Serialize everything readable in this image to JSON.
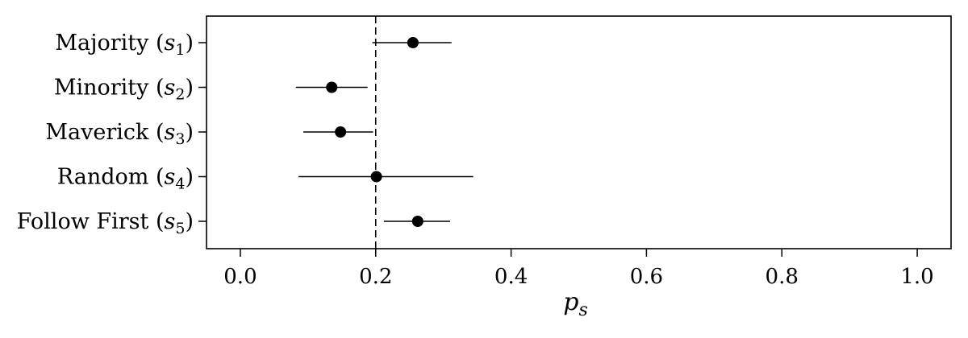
{
  "chart_data": {
    "type": "scatter",
    "categories": [
      {
        "name": "Majority",
        "symbol": "s",
        "subscript": "1"
      },
      {
        "name": "Minority",
        "symbol": "s",
        "subscript": "2"
      },
      {
        "name": "Maverick",
        "symbol": "s",
        "subscript": "3"
      },
      {
        "name": "Random",
        "symbol": "s",
        "subscript": "4"
      },
      {
        "name": "Follow First",
        "symbol": "s",
        "subscript": "5"
      }
    ],
    "values": [
      0.255,
      0.135,
      0.148,
      0.201,
      0.262
    ],
    "ci_low": [
      0.195,
      0.082,
      0.093,
      0.086,
      0.212
    ],
    "ci_high": [
      0.312,
      0.188,
      0.196,
      0.344,
      0.31
    ],
    "reference_line": 0.2,
    "xlim": [
      -0.05,
      1.05
    ],
    "xticks": [
      0.0,
      0.2,
      0.4,
      0.6,
      0.8,
      1.0
    ],
    "xtick_labels": [
      "0.0",
      "0.2",
      "0.4",
      "0.6",
      "0.8",
      "1.0"
    ],
    "xlabel": "p",
    "xlabel_subscript": "s",
    "title": "",
    "grid": false,
    "colors": {
      "marker": "#000000",
      "errorbar": "#000000",
      "reference_line": "#000000",
      "axes": "#000000"
    }
  }
}
